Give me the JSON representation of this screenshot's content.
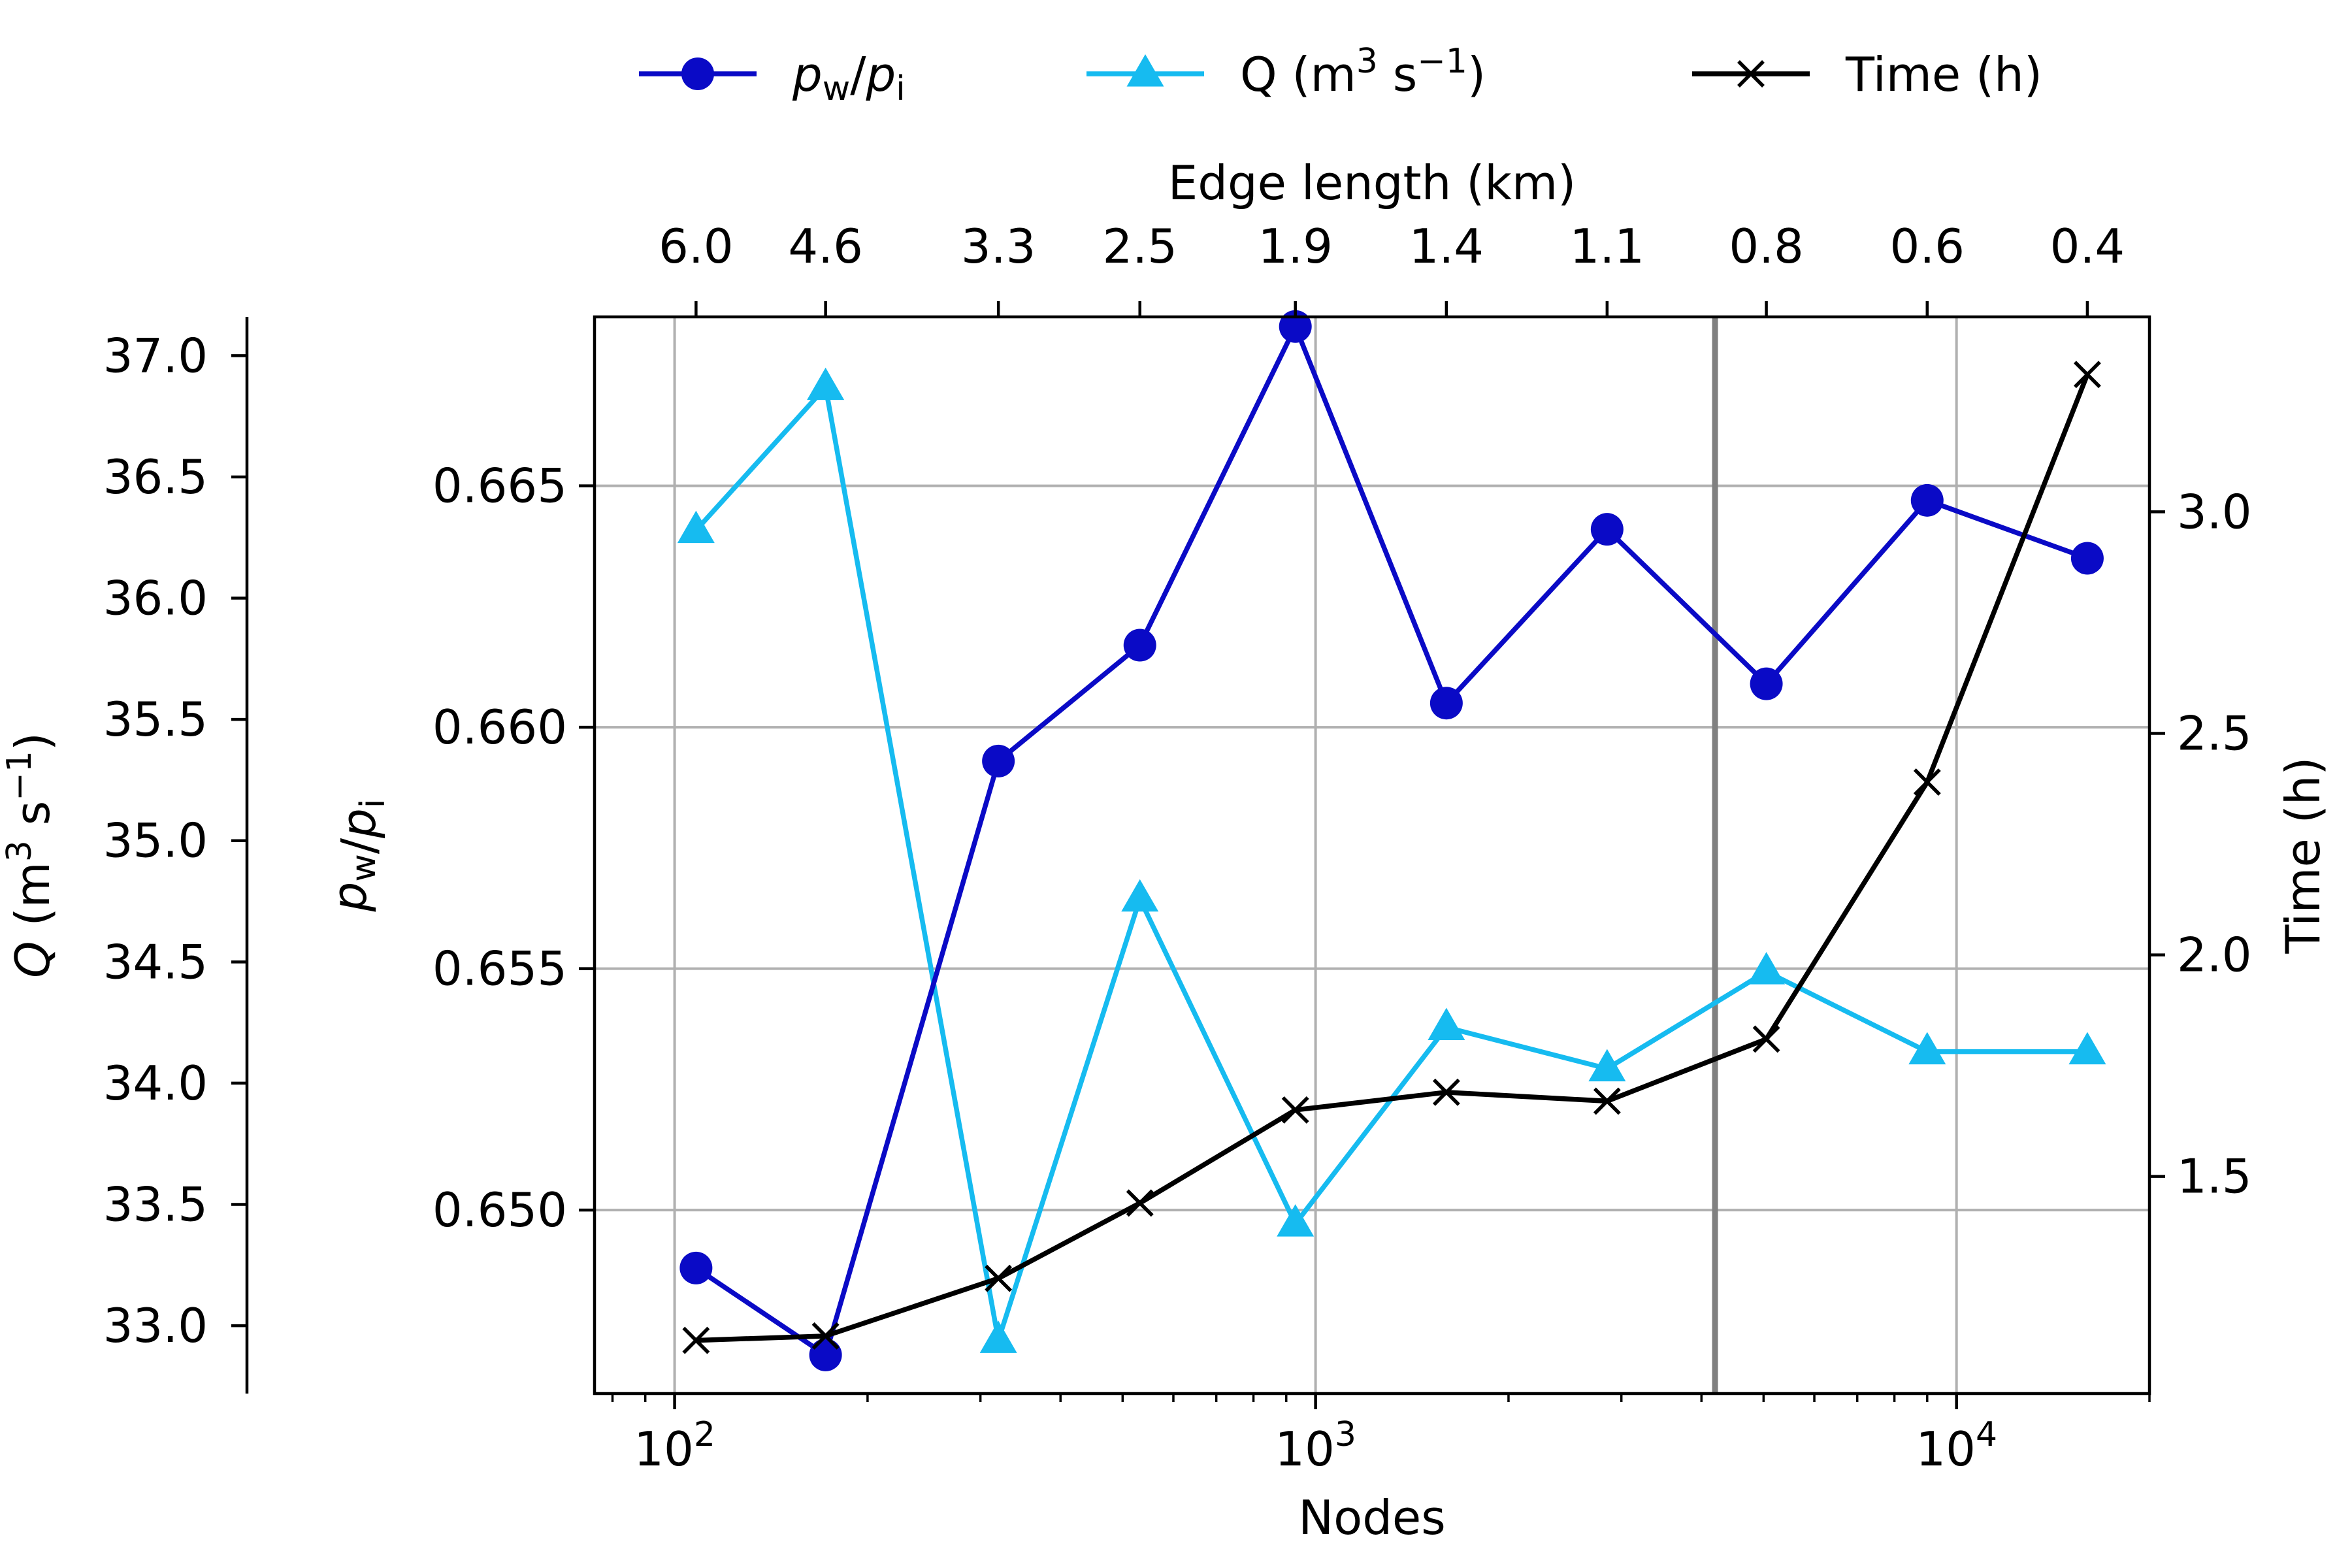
{
  "chart_data": {
    "type": "line",
    "x_axis": {
      "title": "Nodes",
      "scale": "log",
      "lim": [
        75,
        20000
      ],
      "major_ticks": [
        100,
        1000,
        10000
      ],
      "major_tick_labels": [
        "10^2",
        "10^3",
        "10^4"
      ]
    },
    "top_axis": {
      "title": "Edge length (km)",
      "tick_positions_nodes": [
        108,
        172,
        320,
        532,
        930,
        1600,
        2850,
        5050,
        9000,
        16000
      ],
      "tick_labels": [
        "6.0",
        "4.6",
        "3.3",
        "2.5",
        "1.9",
        "1.4",
        "1.1",
        "0.8",
        "0.6",
        "0.4"
      ]
    },
    "left_axis": {
      "title": "p_w/p_i",
      "lim": [
        0.6462,
        0.6685
      ],
      "ticks": [
        0.65,
        0.655,
        0.66,
        0.665
      ],
      "tick_labels": [
        "0.650",
        "0.655",
        "0.660",
        "0.665"
      ]
    },
    "far_left_axis": {
      "title": "Q (m^3 s^-1)",
      "lim": [
        32.72,
        37.16
      ],
      "ticks": [
        33.0,
        33.5,
        34.0,
        34.5,
        35.0,
        35.5,
        36.0,
        36.5,
        37.0
      ],
      "tick_labels": [
        "33.0",
        "33.5",
        "34.0",
        "34.5",
        "35.0",
        "35.5",
        "36.0",
        "36.5",
        "37.0"
      ]
    },
    "right_axis": {
      "title": "Time (h)",
      "lim": [
        1.01,
        3.44
      ],
      "ticks": [
        1.5,
        2.0,
        2.5,
        3.0
      ],
      "tick_labels": [
        "1.5",
        "2.0",
        "2.5",
        "3.0"
      ]
    },
    "vertical_line_nodes": 4200,
    "grid": true,
    "legend_position": "top",
    "nodes": [
      108,
      172,
      320,
      532,
      930,
      1600,
      2850,
      5050,
      9000,
      16000
    ],
    "series": [
      {
        "name": "p_w/p_i",
        "axis": "left",
        "color": "#0a0ac6",
        "marker": "circle",
        "values": [
          0.6488,
          0.647,
          0.6593,
          0.6617,
          0.6683,
          0.6605,
          0.6641,
          0.6609,
          0.6647,
          0.6635
        ]
      },
      {
        "name": "Q (m^3 s^-1)",
        "axis": "far_left",
        "color": "#16bbf0",
        "marker": "triangle",
        "values": [
          36.28,
          36.87,
          32.94,
          34.76,
          33.42,
          34.23,
          34.06,
          34.46,
          34.13,
          34.13
        ]
      },
      {
        "name": "Time (h)",
        "axis": "right",
        "color": "#000000",
        "marker": "x",
        "values": [
          1.13,
          1.14,
          1.27,
          1.44,
          1.65,
          1.69,
          1.67,
          1.81,
          2.39,
          3.31
        ]
      }
    ]
  }
}
